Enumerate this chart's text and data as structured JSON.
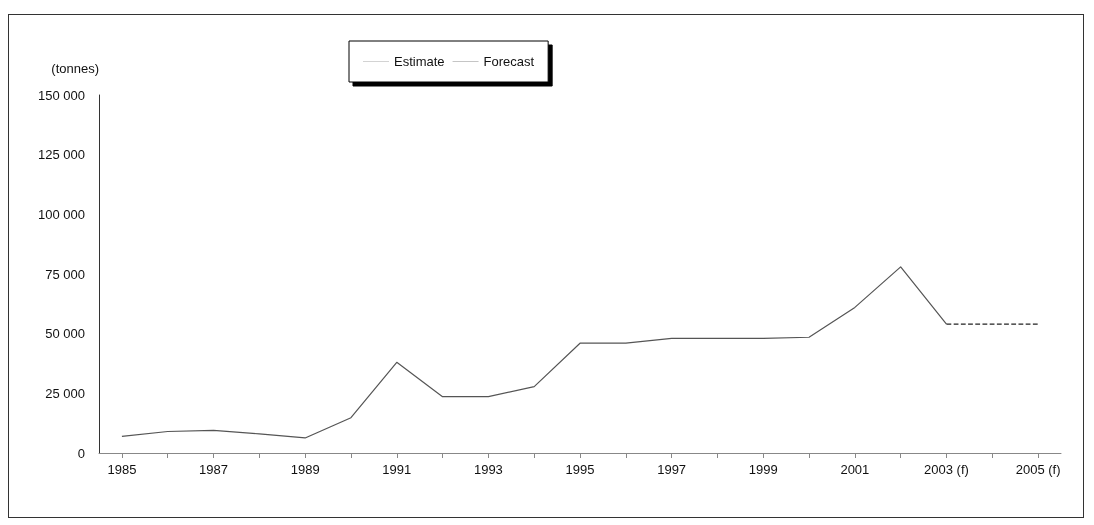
{
  "chart_data": {
    "type": "line",
    "ylabel": "(tonnes)",
    "categories": [
      "1985",
      null,
      "1987",
      null,
      "1989",
      null,
      "1991",
      null,
      "1993",
      null,
      "1995",
      null,
      "1997",
      null,
      "1999",
      null,
      "2001",
      null,
      "2003 (f)",
      null,
      "2005 (f)"
    ],
    "series": [
      {
        "name": "Estimate",
        "color": "#555555",
        "line_style": "solid",
        "values": [
          7000,
          9000,
          9500,
          8000,
          6300,
          14800,
          38000,
          23600,
          23600,
          27800,
          46000,
          46000,
          48000,
          48000,
          48000,
          48500,
          61000,
          78000,
          54000,
          null,
          null
        ]
      },
      {
        "name": "Forecast",
        "color": "#222222",
        "line_style": "dashed",
        "values": [
          null,
          null,
          null,
          null,
          null,
          null,
          null,
          null,
          null,
          null,
          null,
          null,
          null,
          null,
          null,
          null,
          null,
          null,
          54000,
          54000,
          54000
        ]
      }
    ],
    "ylim": [
      0,
      150000
    ],
    "yticks": [
      0,
      {
        "value": 25000,
        "label": "25 000"
      },
      {
        "value": 50000,
        "label": "50 000"
      },
      {
        "value": 75000,
        "label": "75 000"
      },
      {
        "value": 100000,
        "label": "100 000"
      },
      {
        "value": 125000,
        "label": "125 000"
      },
      {
        "value": 150000,
        "label": "150 000"
      }
    ],
    "grid": false,
    "legend": "top",
    "marker": "none"
  }
}
